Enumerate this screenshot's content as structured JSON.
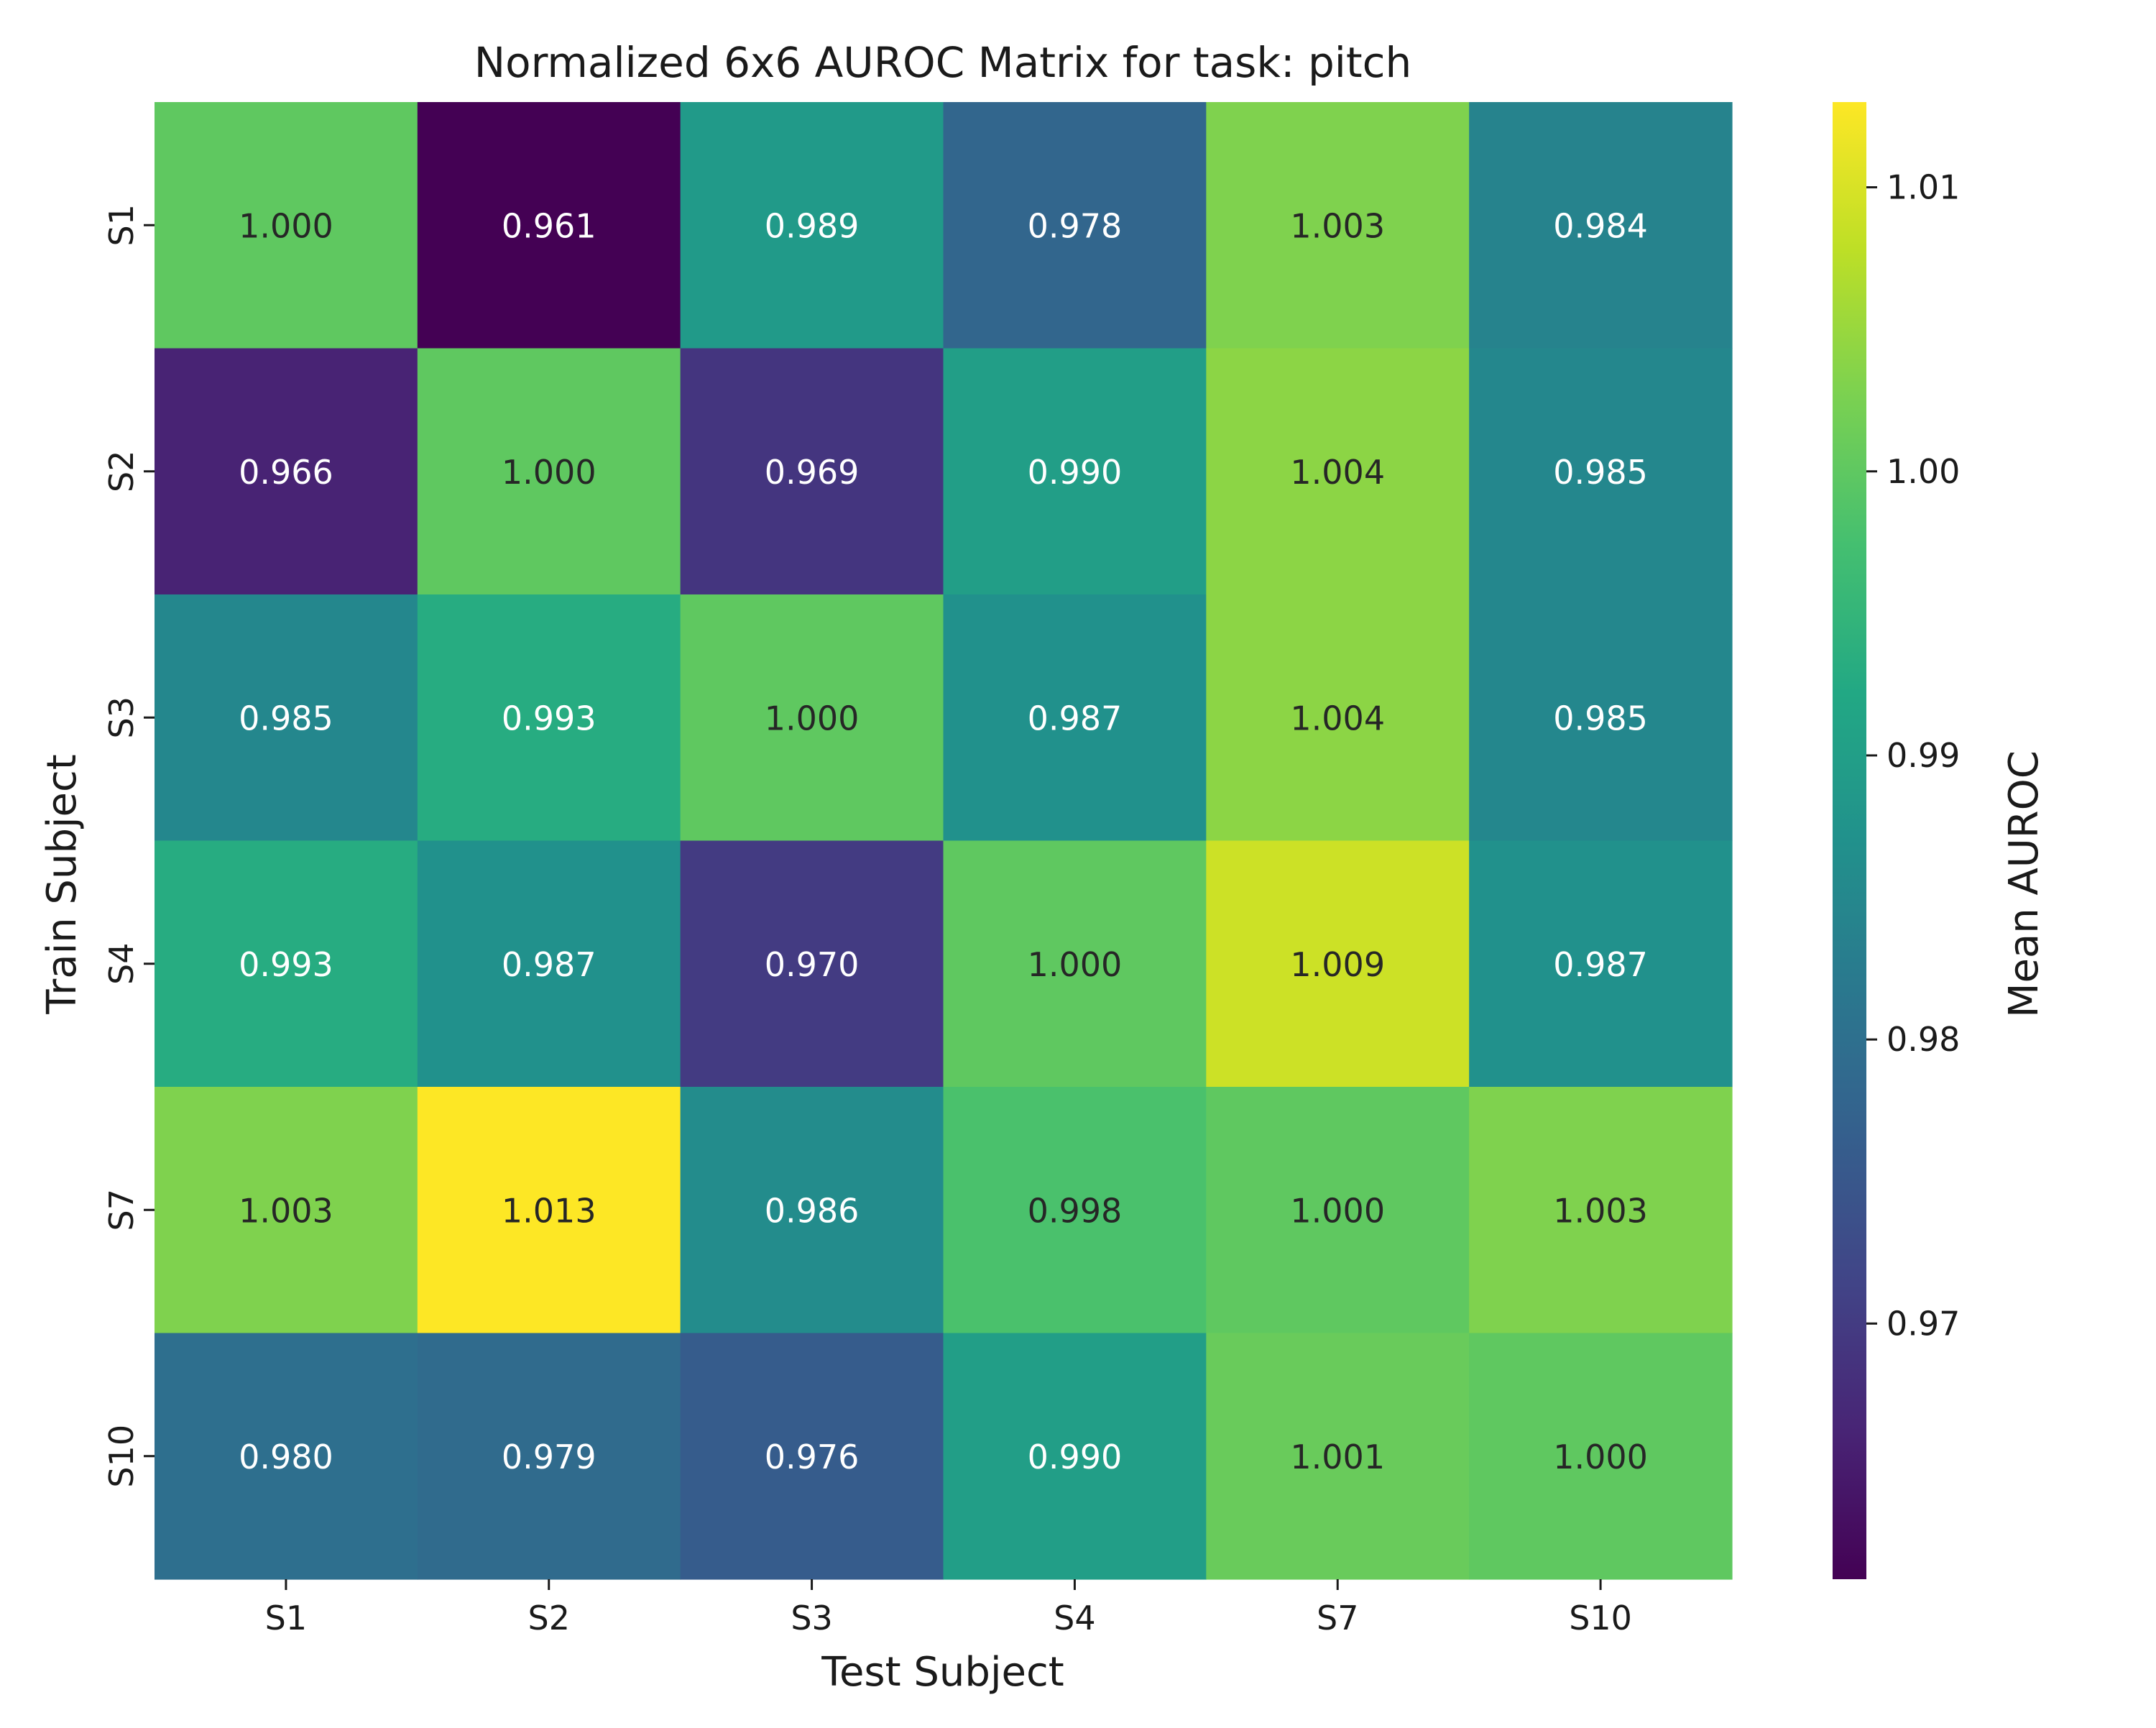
{
  "chart_data": {
    "type": "heatmap",
    "title": "Normalized 6x6 AUROC Matrix for task: pitch",
    "xlabel": "Test Subject",
    "ylabel": "Train Subject",
    "x_categories": [
      "S1",
      "S2",
      "S3",
      "S4",
      "S7",
      "S10"
    ],
    "y_categories": [
      "S1",
      "S2",
      "S3",
      "S4",
      "S7",
      "S10"
    ],
    "values": [
      [
        1.0,
        0.961,
        0.989,
        0.978,
        1.003,
        0.984
      ],
      [
        0.966,
        1.0,
        0.969,
        0.99,
        1.004,
        0.985
      ],
      [
        0.985,
        0.993,
        1.0,
        0.987,
        1.004,
        0.985
      ],
      [
        0.993,
        0.987,
        0.97,
        1.0,
        1.009,
        0.987
      ],
      [
        1.003,
        1.013,
        0.986,
        0.998,
        1.0,
        1.003
      ],
      [
        0.98,
        0.979,
        0.976,
        0.99,
        1.001,
        1.0
      ]
    ],
    "value_format": "0.000",
    "colormap": "viridis",
    "colorbar": {
      "label": "Mean AUROC",
      "range": [
        0.961,
        1.013
      ],
      "ticks": [
        0.97,
        0.98,
        0.99,
        1.0,
        1.01
      ],
      "tick_labels": [
        "0.97",
        "0.98",
        "0.99",
        "1.00",
        "1.01"
      ]
    },
    "grid": false
  }
}
